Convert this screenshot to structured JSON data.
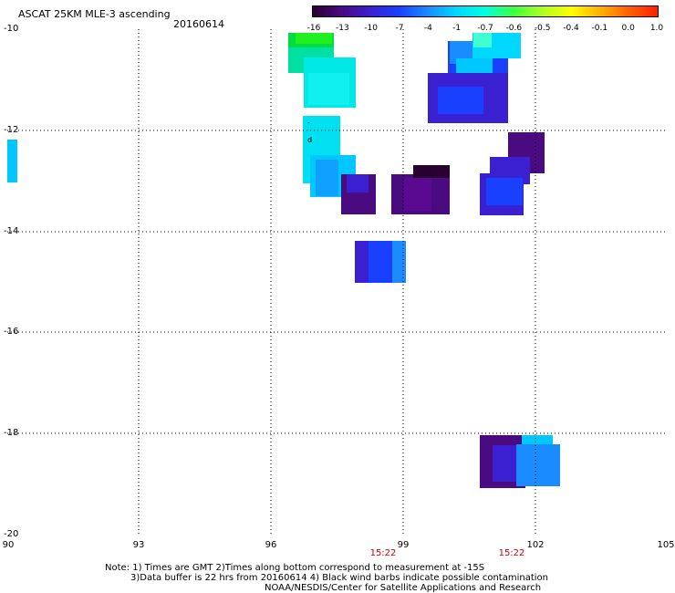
{
  "header": {
    "title": "ASCAT 25KM MLE-3 ascending",
    "date": "20160614"
  },
  "colorbar": {
    "tick_labels": [
      "-16",
      "-13",
      "-10",
      "-7",
      "-4",
      "-1",
      "-0.7",
      "-0.6",
      "-0.5",
      "-0.4",
      "-0.1",
      "0.0",
      "1.0"
    ],
    "colors": [
      "#2a0030",
      "#4a0a80",
      "#3a20d0",
      "#1a40ff",
      "#1a8cff",
      "#00d8ff",
      "#00ffe0",
      "#40ff40",
      "#b0ff20",
      "#ffff00",
      "#ffb000",
      "#ff6000",
      "#ff2000"
    ]
  },
  "axes": {
    "lat_labels": [
      "-10",
      "-12",
      "-14",
      "-16",
      "-18",
      "-20"
    ],
    "lon_labels": [
      "90",
      "93",
      "96",
      "99",
      "102",
      "105"
    ]
  },
  "pass_times": [
    "15:22",
    "15:22"
  ],
  "notes": {
    "line1": "Note: 1) Times are GMT 2)Times along bottom correspond to measurement at -15S",
    "line2": "3)Data buffer is 22 hrs from 20160614 4) Black wind barbs indicate possible contamination",
    "line3": "NOAA/NESDIS/Center for Satellite Applications and Research"
  }
}
